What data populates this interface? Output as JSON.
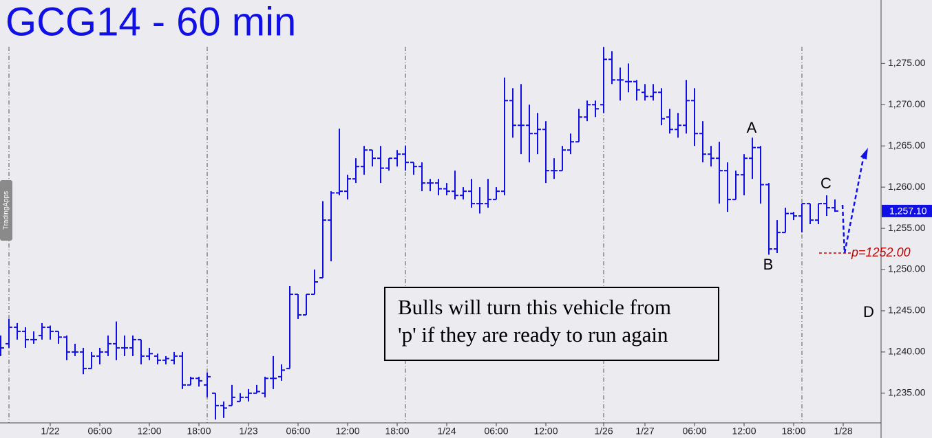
{
  "chart_data": {
    "type": "ohlc",
    "title": "GCG14 - 60 min",
    "sidebar_tab": "TradingApps",
    "note": [
      "Bulls will turn this vehicle from",
      "'p' if they are ready to run again"
    ],
    "annotations": [
      "A",
      "B",
      "C",
      "D"
    ],
    "color": "#1010e6",
    "categories": [
      null,
      null,
      null,
      null,
      null,
      null,
      "1/22",
      null,
      null,
      null,
      null,
      null,
      "06:00",
      null,
      null,
      null,
      null,
      null,
      "12:00",
      null,
      null,
      null,
      null,
      null,
      "18:00",
      null,
      null,
      null,
      null,
      null,
      "1/23",
      null,
      null,
      null,
      null,
      null,
      "06:00",
      null,
      null,
      null,
      null,
      null,
      "12:00",
      null,
      null,
      null,
      null,
      null,
      "18:00",
      null,
      null,
      null,
      null,
      null,
      "1/24",
      null,
      null,
      null,
      null,
      null,
      "06:00",
      null,
      null,
      null,
      null,
      null,
      "12:00",
      null,
      null,
      null,
      null,
      null,
      null,
      "1/26",
      null,
      null,
      null,
      null,
      "1/27",
      null,
      null,
      null,
      null,
      null,
      "06:00",
      null,
      null,
      null,
      null,
      null,
      "12:00",
      null,
      null,
      null,
      null,
      null,
      "18:00",
      null,
      null,
      null,
      null,
      null,
      "1/28"
    ],
    "open": [
      1241,
      1241,
      1243,
      1242.5,
      1241.5,
      1242,
      1243,
      1242.5,
      1241.8,
      1240,
      1240,
      1238,
      1239.5,
      1240,
      1241,
      1240.5,
      1240.5,
      1241.5,
      1239.5,
      1239.5,
      1239,
      1239,
      1239.5,
      1236,
      1236.8,
      1236,
      1235,
      1233.5,
      1233.5,
      1234,
      1234.5,
      1235,
      1235,
      1236.8,
      1237,
      1238,
      1247,
      1244.5,
      1247,
      1249,
      1256,
      1259.3,
      1259.5,
      1261,
      1262.5,
      1264.5,
      1263.5,
      1262.3,
      1263.5,
      1264,
      1263,
      1262.5,
      1260.5,
      1260.5,
      1259.8,
      1259.5,
      1259,
      1259.5,
      1258,
      1258,
      1258.5,
      1259.5,
      1270.5,
      1267.5,
      1267.5,
      1266.5,
      1267,
      1262,
      1262,
      1264.5,
      1265.5,
      1268.5,
      1270,
      1270,
      1275.5,
      1273,
      1272.8,
      1272.8,
      1271.5,
      1271,
      1271.5,
      1268.5,
      1267,
      1267.5,
      1270.5,
      1266.5,
      1264,
      1263.5,
      1262,
      1258.5,
      1261.5,
      1263.5,
      1264.8,
      1260.3,
      1252.5,
      1254.5,
      1256.8,
      1256.5,
      1258,
      1256,
      1258,
      1257.5,
      null
    ],
    "high": [
      1242,
      1244,
      1243.5,
      1243,
      1242.5,
      1243.5,
      1243.2,
      1242.5,
      1242,
      1241,
      1240.5,
      1240,
      1240.5,
      1242,
      1243.7,
      1242,
      1242,
      1241.5,
      1240.5,
      1239.8,
      1239.5,
      1240,
      1240,
      1237,
      1237,
      1237.5,
      1235,
      1234,
      1236,
      1235,
      1235.5,
      1236,
      1237,
      1239.5,
      1238.5,
      1248,
      1247,
      1247,
      1250,
      1258.3,
      1259.5,
      1267.1,
      1261.5,
      1263.5,
      1265,
      1264.5,
      1265,
      1263.5,
      1264.5,
      1265,
      1263,
      1263,
      1261,
      1261,
      1260.5,
      1262,
      1260,
      1261,
      1260,
      1261,
      1260,
      1273.3,
      1272,
      1272.5,
      1270,
      1269,
      1268,
      1263.5,
      1265,
      1266.5,
      1269.5,
      1270.5,
      1270.5,
      1277,
      1276.5,
      1274.5,
      1275,
      1273,
      1272.5,
      1272.5,
      1272,
      1269.5,
      1269,
      1273,
      1272,
      1268,
      1265,
      1265.5,
      1263,
      1262,
      1264,
      1266,
      1265,
      1260.5,
      1256,
      1257.5,
      1257,
      1258,
      1258,
      1258,
      1259,
      1258.5,
      null
    ],
    "low": [
      1239.5,
      1240.5,
      1241.5,
      1240.5,
      1241,
      1241.5,
      1241.5,
      1241,
      1239,
      1239.5,
      1237.3,
      1238,
      1238.5,
      1239.5,
      1239,
      1239.5,
      1239.5,
      1238.5,
      1239,
      1238.5,
      1238.5,
      1238.5,
      1235.5,
      1236,
      1235.8,
      1234.5,
      1231.8,
      1232,
      1233.5,
      1234,
      1234,
      1235,
      1234.5,
      1235.5,
      1236.5,
      1238,
      1244,
      1244.5,
      1247,
      1249,
      1251,
      1259,
      1258.5,
      1260.5,
      1261.5,
      1262.5,
      1260.5,
      1262,
      1262.5,
      1262,
      1261.5,
      1259.5,
      1259.5,
      1259,
      1259,
      1258.5,
      1258.5,
      1257.5,
      1256.8,
      1257.5,
      1258.5,
      1259,
      1266,
      1264,
      1263,
      1264,
      1260.5,
      1261,
      1262,
      1264,
      1265.5,
      1268,
      1268.5,
      1269,
      1272.5,
      1270.5,
      1271.5,
      1270.5,
      1270.5,
      1270.5,
      1267.5,
      1266.5,
      1266,
      1266.5,
      1265,
      1263,
      1262.5,
      1258,
      1257,
      1258.5,
      1259,
      1261,
      1258,
      1251.8,
      1252,
      1254.5,
      1256,
      1254.5,
      1255.5,
      1255.5,
      1256.5,
      1257,
      null
    ],
    "close": [
      1240.5,
      1243,
      1242.5,
      1241.5,
      1241.5,
      1243,
      1242.5,
      1241.8,
      1240,
      1240,
      1238,
      1239.5,
      1240,
      1241,
      1240.5,
      1240.5,
      1241.5,
      1239.5,
      1239.8,
      1239,
      1239.2,
      1239.5,
      1236,
      1236.8,
      1236.5,
      1237,
      1233.5,
      1233.2,
      1234.5,
      1234.5,
      1235,
      1235.2,
      1236.8,
      1236.8,
      1237.8,
      1247,
      1244.5,
      1247,
      1248.5,
      1256,
      1259.3,
      1259.5,
      1261,
      1262.5,
      1264.5,
      1263.5,
      1262.3,
      1263.5,
      1264,
      1263,
      1262.5,
      1260.5,
      1260.5,
      1259.8,
      1259.5,
      1259,
      1259.5,
      1258,
      1258,
      1258.5,
      1259.5,
      1270.5,
      1267.5,
      1267.5,
      1266.5,
      1267,
      1262,
      1262,
      1264.5,
      1265.5,
      1268.5,
      1270,
      1269.5,
      1275.5,
      1273,
      1273,
      1272.8,
      1271.8,
      1271,
      1271.5,
      1268.3,
      1267,
      1267.5,
      1270.5,
      1266.5,
      1264,
      1263.5,
      1262,
      1258.5,
      1261.5,
      1263.5,
      1264.8,
      1260.3,
      1252.5,
      1254.5,
      1256.8,
      1256.5,
      1258,
      1256,
      1258,
      1257.5,
      1257.1,
      null
    ],
    "separators": [
      1,
      25,
      49,
      73,
      97
    ],
    "ylim": [
      1231.4,
      1282.7
    ],
    "yticks": [
      {
        "value": 1235,
        "label": "1,235.00"
      },
      {
        "value": 1240,
        "label": "1,240.00"
      },
      {
        "value": 1245,
        "label": "1,245.00"
      },
      {
        "value": 1250,
        "label": "1,250.00"
      },
      {
        "value": 1255,
        "label": "1,255.00"
      },
      {
        "value": 1260,
        "label": "1,260.00"
      },
      {
        "value": 1265,
        "label": "1,265.00"
      },
      {
        "value": 1270,
        "label": "1,270.00"
      },
      {
        "value": 1275,
        "label": "1,275.00"
      }
    ],
    "last_price": {
      "value": 1257.1,
      "label": "1,257.10"
    },
    "pivot": {
      "value": 1252,
      "label": "p=1252.00",
      "color": "#c00000"
    }
  }
}
